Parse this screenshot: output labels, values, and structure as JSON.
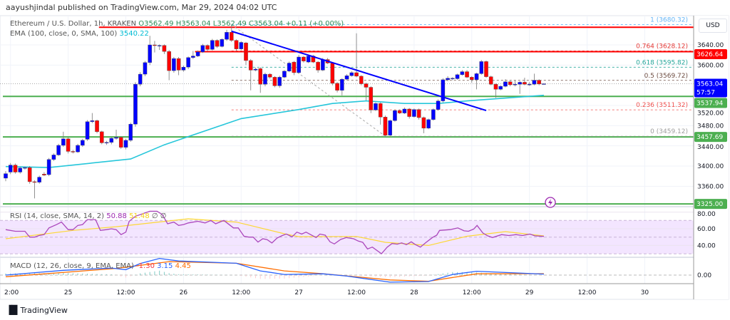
{
  "header": {
    "published": "aayushjindal published on TradingView.com, Mar 29, 2024 04:02 UTC"
  },
  "legend": {
    "symbol": "Ethereum / U.S. Dollar, 1h, KRAKEN",
    "open": "O3562.49",
    "high": "H3563.04",
    "low": "L3562.49",
    "close": "C3563.04",
    "change": "+0.11 (+0.00%)",
    "ema_label": "EMA (100, close, 0, SMA, 100)",
    "ema_value": "3540.22"
  },
  "rsi_legend": {
    "label": "RSI (14, close, SMA, 14, 2)",
    "rsi": "50.88",
    "signal": "51.48",
    "extra1": "∅",
    "extra2": "∅"
  },
  "macd_legend": {
    "label": "MACD (12, 26, close, 9, EMA, EMA)",
    "hist": "-1.30",
    "macd": "3.15",
    "signal": "4.45"
  },
  "currency": "USD",
  "brand": {
    "name": "TradingView",
    "logo": "TV"
  },
  "colors": {
    "up": "#0000ff",
    "down": "#ff0000",
    "ema": "#26c6da",
    "trendline": "#0000ff",
    "resistance": "#ff0000",
    "support": "#4caf50",
    "rsi": "#ab47bc",
    "rsi_signal": "#fdd835",
    "macd": "#2962ff",
    "macd_signal": "#ff6d00",
    "last_price": "#0000ff"
  },
  "icons": {
    "alert": "lightning-icon",
    "logo": "tradingview-logo-icon"
  },
  "chart_data": {
    "type": "candlestick",
    "interval": "1h",
    "price_ticks": [
      "3640.00",
      "3600.00",
      "3520.00",
      "3480.00",
      "3440.00",
      "3400.00",
      "3360.00"
    ],
    "price_tick_values": [
      3640,
      3600,
      3520,
      3480,
      3440,
      3400,
      3360
    ],
    "time_ticks": [
      {
        "label": "2:00",
        "bar": 1
      },
      {
        "label": "25",
        "bar": 13
      },
      {
        "label": "12:00",
        "bar": 25
      },
      {
        "label": "26",
        "bar": 37
      },
      {
        "label": "12:00",
        "bar": 49
      },
      {
        "label": "27",
        "bar": 61
      },
      {
        "label": "12:00",
        "bar": 73
      },
      {
        "label": "28",
        "bar": 85
      },
      {
        "label": "12:00",
        "bar": 97
      },
      {
        "label": "29",
        "bar": 109
      },
      {
        "label": "12:00",
        "bar": 121
      },
      {
        "label": "30",
        "bar": 133
      }
    ],
    "ohlc": [
      [
        3376,
        3390,
        3370,
        3385
      ],
      [
        3388,
        3406,
        3384,
        3402
      ],
      [
        3402,
        3405,
        3385,
        3388
      ],
      [
        3388,
        3399,
        3385,
        3396
      ],
      [
        3396,
        3399,
        3393,
        3397
      ],
      [
        3397,
        3400,
        3365,
        3369
      ],
      [
        3369,
        3372,
        3336,
        3368
      ],
      [
        3368,
        3381,
        3365,
        3378
      ],
      [
        3384,
        3388,
        3380,
        3382
      ],
      [
        3383,
        3416,
        3380,
        3413
      ],
      [
        3413,
        3425,
        3410,
        3422
      ],
      [
        3422,
        3444,
        3420,
        3441
      ],
      [
        3441,
        3468,
        3438,
        3454
      ],
      [
        3454,
        3457,
        3425,
        3429
      ],
      [
        3429,
        3432,
        3425,
        3428
      ],
      [
        3428,
        3444,
        3426,
        3441
      ],
      [
        3441,
        3454,
        3438,
        3451
      ],
      [
        3453,
        3491,
        3450,
        3488
      ],
      [
        3488,
        3505,
        3485,
        3490
      ],
      [
        3490,
        3492,
        3465,
        3468
      ],
      [
        3468,
        3470,
        3443,
        3446
      ],
      [
        3446,
        3450,
        3442,
        3447
      ],
      [
        3447,
        3458,
        3443,
        3455
      ],
      [
        3455,
        3472,
        3452,
        3457
      ],
      [
        3457,
        3459,
        3434,
        3437
      ],
      [
        3437,
        3454,
        3433,
        3451
      ],
      [
        3451,
        3486,
        3448,
        3483
      ],
      [
        3483,
        3566,
        3478,
        3562
      ],
      [
        3562,
        3586,
        3558,
        3582
      ],
      [
        3582,
        3608,
        3578,
        3605
      ],
      [
        3605,
        3658,
        3600,
        3640
      ],
      [
        3640,
        3648,
        3625,
        3639
      ],
      [
        3639,
        3641,
        3630,
        3639
      ],
      [
        3639,
        3641,
        3622,
        3627
      ],
      [
        3627,
        3630,
        3570,
        3589
      ],
      [
        3589,
        3616,
        3585,
        3613
      ],
      [
        3613,
        3616,
        3580,
        3590
      ],
      [
        3590,
        3599,
        3587,
        3596
      ],
      [
        3596,
        3617,
        3592,
        3615
      ],
      [
        3615,
        3628,
        3612,
        3618
      ],
      [
        3618,
        3629,
        3616,
        3626
      ],
      [
        3626,
        3642,
        3624,
        3639
      ],
      [
        3639,
        3641,
        3628,
        3631
      ],
      [
        3631,
        3652,
        3629,
        3649
      ],
      [
        3649,
        3651,
        3634,
        3637
      ],
      [
        3637,
        3653,
        3635,
        3651
      ],
      [
        3651,
        3670,
        3648,
        3665
      ],
      [
        3665,
        3680.32,
        3646,
        3649
      ],
      [
        3649,
        3651,
        3628,
        3632
      ],
      [
        3632,
        3647,
        3630,
        3645
      ],
      [
        3644,
        3646,
        3600,
        3609
      ],
      [
        3609,
        3612,
        3550,
        3590
      ],
      [
        3590,
        3595,
        3588,
        3592
      ],
      [
        3593,
        3596,
        3545,
        3562
      ],
      [
        3562,
        3585,
        3558,
        3582
      ],
      [
        3582,
        3584,
        3573,
        3576
      ],
      [
        3576,
        3578,
        3556,
        3559
      ],
      [
        3559,
        3579,
        3555,
        3576
      ],
      [
        3576,
        3590,
        3574,
        3588
      ],
      [
        3588,
        3607,
        3586,
        3604
      ],
      [
        3606,
        3608,
        3580,
        3585
      ],
      [
        3585,
        3620,
        3583,
        3616
      ],
      [
        3616,
        3618,
        3605,
        3608
      ],
      [
        3606,
        3621,
        3604,
        3618
      ],
      [
        3618,
        3620,
        3604,
        3606
      ],
      [
        3606,
        3608,
        3585,
        3590
      ],
      [
        3590,
        3614,
        3588,
        3611
      ],
      [
        3611,
        3614,
        3602,
        3604
      ],
      [
        3604,
        3606,
        3560,
        3564
      ],
      [
        3564,
        3566,
        3546,
        3550
      ],
      [
        3550,
        3574,
        3540,
        3572
      ],
      [
        3572,
        3582,
        3570,
        3579
      ],
      [
        3579,
        3588,
        3577,
        3585
      ],
      [
        3585,
        3663,
        3576,
        3578
      ],
      [
        3578,
        3580,
        3560,
        3563
      ],
      [
        3563,
        3565,
        3530,
        3556
      ],
      [
        3556,
        3558,
        3505,
        3511
      ],
      [
        3511,
        3526,
        3509,
        3524
      ],
      [
        3524,
        3526,
        3482,
        3497
      ],
      [
        3497,
        3500,
        3459.12,
        3461
      ],
      [
        3461,
        3492,
        3459.5,
        3490
      ],
      [
        3490,
        3512,
        3488,
        3510
      ],
      [
        3510,
        3512,
        3503,
        3505
      ],
      [
        3505,
        3516,
        3503,
        3513
      ],
      [
        3513,
        3515,
        3494,
        3498
      ],
      [
        3498,
        3514,
        3496,
        3512
      ],
      [
        3512,
        3514,
        3492,
        3496
      ],
      [
        3496,
        3498,
        3465,
        3475
      ],
      [
        3475,
        3494,
        3473,
        3492
      ],
      [
        3492,
        3514,
        3490,
        3512
      ],
      [
        3512,
        3532,
        3510,
        3529
      ],
      [
        3529,
        3574,
        3526,
        3571
      ],
      [
        3571,
        3578,
        3568,
        3574
      ],
      [
        3573,
        3576,
        3570,
        3574
      ],
      [
        3573,
        3583,
        3571,
        3581
      ],
      [
        3581,
        3590,
        3579,
        3587
      ],
      [
        3587,
        3590,
        3574,
        3576
      ],
      [
        3576,
        3578,
        3565,
        3571
      ],
      [
        3571,
        3585,
        3552,
        3583
      ],
      [
        3583,
        3610,
        3581,
        3607
      ],
      [
        3607,
        3609,
        3575,
        3577
      ],
      [
        3577,
        3579,
        3560,
        3562
      ],
      [
        3562,
        3564,
        3535,
        3552
      ],
      [
        3552,
        3560,
        3550,
        3558
      ],
      [
        3558,
        3572,
        3556,
        3567
      ],
      [
        3567,
        3569,
        3558,
        3561
      ],
      [
        3561,
        3570,
        3558,
        3562
      ],
      [
        3562,
        3568,
        3543,
        3566
      ],
      [
        3566,
        3575,
        3560,
        3562
      ],
      [
        3562,
        3566,
        3559,
        3562
      ],
      [
        3562,
        3583,
        3560,
        3570
      ],
      [
        3570,
        3572,
        3560,
        3562.5
      ],
      [
        3562.49,
        3563.04,
        3562.49,
        3563.04
      ]
    ],
    "ema100": [
      [
        0,
        3399
      ],
      [
        9,
        3397
      ],
      [
        26,
        3414
      ],
      [
        33,
        3442
      ],
      [
        49,
        3494
      ],
      [
        61,
        3512
      ],
      [
        68,
        3524
      ],
      [
        75,
        3529
      ],
      [
        83,
        3524
      ],
      [
        90,
        3524
      ],
      [
        96,
        3529
      ],
      [
        112,
        3540.22
      ]
    ],
    "horizontal_levels": [
      {
        "kind": "resistance",
        "price": 3675,
        "from_bar": 20
      },
      {
        "kind": "resistance",
        "price": 3626.64,
        "from_bar": 40,
        "label": "3626.64"
      },
      {
        "kind": "support",
        "price": 3537.94,
        "from_bar": 0,
        "label": "3537.94"
      },
      {
        "kind": "support",
        "price": 3457.69,
        "from_bar": 0,
        "label": "3457.69"
      },
      {
        "kind": "support",
        "price": 3325.0,
        "from_bar": 0,
        "label": "3325.00"
      }
    ],
    "last_price": {
      "label": "3563.04",
      "countdown": "57:57",
      "price": 3563.04
    },
    "trendline": {
      "from": [
        47,
        3667
      ],
      "to": [
        100,
        3510
      ]
    },
    "fibonacci": {
      "from_bar": 47,
      "to_bar": 79,
      "levels": [
        {
          "ratio": "1",
          "price": 3680.32,
          "label": "1 (3680.32)",
          "color": "#64b5f6"
        },
        {
          "ratio": "0.764",
          "price": 3628.12,
          "label": "0.764 (3628.12)",
          "color": "#e53935"
        },
        {
          "ratio": "0.618",
          "price": 3595.82,
          "label": "0.618 (3595.82)",
          "color": "#26a69a"
        },
        {
          "ratio": "0.5",
          "price": 3569.72,
          "label": "0.5 (3569.72)",
          "color": "#6d4c41"
        },
        {
          "ratio": "0.236",
          "price": 3511.32,
          "label": "0.236 (3511.32)",
          "color": "#ef5350"
        },
        {
          "ratio": "0",
          "price": 3459.12,
          "label": "0 (3459.12)",
          "color": "#9e9e9e"
        }
      ]
    },
    "rsi": {
      "ticks": [
        "80.00",
        "60.00",
        "40.00"
      ],
      "tick_values": [
        80,
        60,
        40
      ],
      "band": [
        30,
        70
      ],
      "values": [
        [
          0,
          59
        ],
        [
          2,
          57
        ],
        [
          4,
          57
        ],
        [
          5,
          50
        ],
        [
          6,
          50
        ],
        [
          7,
          52
        ],
        [
          8,
          53
        ],
        [
          9,
          61
        ],
        [
          10.6,
          65
        ],
        [
          11.6,
          68
        ],
        [
          13,
          59
        ],
        [
          14,
          59
        ],
        [
          15,
          64
        ],
        [
          16,
          65
        ],
        [
          17,
          71
        ],
        [
          18.7,
          71
        ],
        [
          19.7,
          58
        ],
        [
          21,
          59
        ],
        [
          22,
          60
        ],
        [
          23,
          59
        ],
        [
          24,
          53
        ],
        [
          25,
          56
        ],
        [
          25.7,
          69
        ],
        [
          27,
          75
        ],
        [
          28,
          77
        ],
        [
          30,
          81
        ],
        [
          31.5,
          81
        ],
        [
          32.6,
          77
        ],
        [
          33.7,
          66
        ],
        [
          35,
          68
        ],
        [
          36,
          64
        ],
        [
          37,
          65
        ],
        [
          38,
          67
        ],
        [
          40,
          69
        ],
        [
          41.5,
          67
        ],
        [
          42.7,
          70
        ],
        [
          43.7,
          66
        ],
        [
          45.4,
          70
        ],
        [
          47.4,
          61
        ],
        [
          48.4,
          61
        ],
        [
          49.6,
          51
        ],
        [
          50.6,
          50
        ],
        [
          51.5,
          50
        ],
        [
          52.5,
          44
        ],
        [
          53.5,
          48
        ],
        [
          54.4,
          47
        ],
        [
          55.4,
          43
        ],
        [
          56.5,
          49
        ],
        [
          57.6,
          52
        ],
        [
          58.4,
          53.7
        ],
        [
          59.6,
          50.3
        ],
        [
          60.6,
          56
        ],
        [
          61.6,
          53.7
        ],
        [
          62.5,
          56
        ],
        [
          64.6,
          49.5
        ],
        [
          65.4,
          53.7
        ],
        [
          66.5,
          52.3
        ],
        [
          67.5,
          44.4
        ],
        [
          68.4,
          41.8
        ],
        [
          69.7,
          47.2
        ],
        [
          70.9,
          49.5
        ],
        [
          72.4,
          48
        ],
        [
          73.4,
          45.2
        ],
        [
          74.3,
          43.8
        ],
        [
          75.3,
          35.8
        ],
        [
          76.3,
          38
        ],
        [
          78.2,
          30.1
        ],
        [
          79.4,
          38
        ],
        [
          80.4,
          42.3
        ],
        [
          81.5,
          41.5
        ],
        [
          82.4,
          43.1
        ],
        [
          83.4,
          40.9
        ],
        [
          84.4,
          44.4
        ],
        [
          85.3,
          40.9
        ],
        [
          86.3,
          38
        ],
        [
          87.5,
          43.8
        ],
        [
          88.8,
          49.5
        ],
        [
          89.7,
          52.3
        ],
        [
          90.3,
          58
        ],
        [
          92.5,
          59
        ],
        [
          94.1,
          61
        ],
        [
          95.4,
          57.5
        ],
        [
          96.3,
          57
        ],
        [
          97.4,
          59.7
        ],
        [
          98.1,
          64
        ],
        [
          99.3,
          55
        ],
        [
          100.3,
          51.5
        ],
        [
          101.3,
          49.5
        ],
        [
          103.2,
          53
        ],
        [
          104.7,
          51.9
        ],
        [
          106.2,
          53
        ],
        [
          107.6,
          51.9
        ],
        [
          109.1,
          53.7
        ],
        [
          110.1,
          51.5
        ],
        [
          112,
          50.88
        ]
      ],
      "signal": [
        [
          0,
          48
        ],
        [
          14,
          58
        ],
        [
          23,
          62.5
        ],
        [
          38,
          72
        ],
        [
          48,
          68
        ],
        [
          58,
          54
        ],
        [
          61,
          50.5
        ],
        [
          73,
          50.8
        ],
        [
          79,
          43.8
        ],
        [
          88,
          40
        ],
        [
          96,
          51
        ],
        [
          104,
          56.6
        ],
        [
          112,
          51.48
        ]
      ]
    },
    "macd": {
      "ticks": [
        "0.00"
      ],
      "tick_values": [
        0
      ],
      "macd": [
        [
          0,
          0
        ],
        [
          12,
          15
        ],
        [
          22,
          22
        ],
        [
          25,
          17
        ],
        [
          28,
          36
        ],
        [
          32,
          52
        ],
        [
          36,
          44
        ],
        [
          48,
          37
        ],
        [
          53,
          13
        ],
        [
          58,
          2
        ],
        [
          66,
          4
        ],
        [
          71,
          -3
        ],
        [
          80,
          -22
        ],
        [
          88,
          -20
        ],
        [
          93,
          2
        ],
        [
          98,
          12
        ],
        [
          112,
          3.15
        ]
      ],
      "signal": [
        [
          0,
          -5
        ],
        [
          13.5,
          10
        ],
        [
          23,
          21
        ],
        [
          34,
          42
        ],
        [
          48,
          37
        ],
        [
          58,
          13
        ],
        [
          66,
          4.4
        ],
        [
          80,
          -15
        ],
        [
          88,
          -19
        ],
        [
          98,
          4
        ],
        [
          112,
          4.45
        ]
      ]
    }
  }
}
